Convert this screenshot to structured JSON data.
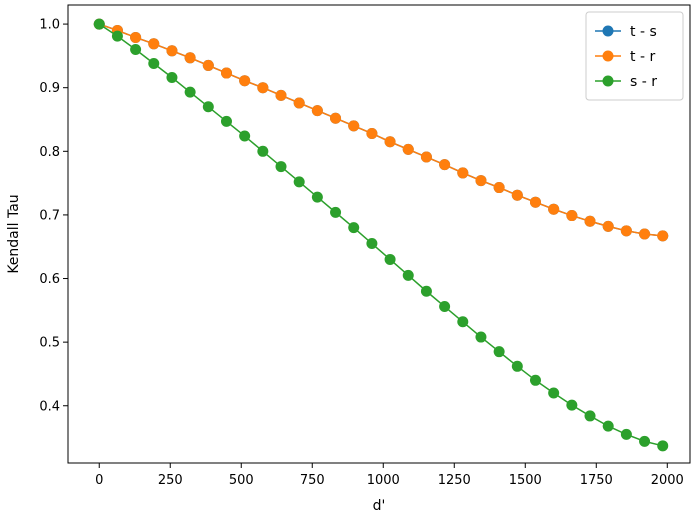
{
  "chart_data": {
    "type": "line",
    "title": "",
    "xlabel": "d'",
    "ylabel": "Kendall Tau",
    "xlim": [
      -110,
      2080
    ],
    "ylim": [
      0.31,
      1.03
    ],
    "xticks": [
      0,
      250,
      500,
      750,
      1000,
      1250,
      1500,
      1750,
      2000
    ],
    "yticks": [
      0.4,
      0.5,
      0.6,
      0.7,
      0.8,
      0.9,
      1.0
    ],
    "xtick_labels": [
      "0",
      "250",
      "500",
      "750",
      "1000",
      "1250",
      "1500",
      "1750",
      "2000"
    ],
    "ytick_labels": [
      "0.4",
      "0.5",
      "0.6",
      "0.7",
      "0.8",
      "0.9",
      "1.0"
    ],
    "grid": false,
    "legend_position": "top-right",
    "x": [
      0,
      64,
      128,
      192,
      256,
      320,
      384,
      448,
      512,
      576,
      640,
      704,
      768,
      832,
      896,
      960,
      1024,
      1088,
      1152,
      1216,
      1280,
      1344,
      1408,
      1472,
      1536,
      1600,
      1664,
      1728,
      1792,
      1856,
      1920,
      1984
    ],
    "series": [
      {
        "name": "t - s",
        "color": "#1f77b4",
        "values": [
          1.0,
          0.99,
          0.979,
          0.969,
          0.958,
          0.947,
          0.935,
          0.923,
          0.911,
          0.9,
          0.888,
          0.876,
          0.864,
          0.852,
          0.84,
          0.828,
          0.815,
          0.803,
          0.791,
          0.779,
          0.766,
          0.754,
          0.743,
          0.731,
          0.72,
          0.709,
          0.699,
          0.69,
          0.682,
          0.675,
          0.67,
          0.667
        ]
      },
      {
        "name": "t - r",
        "color": "#ff7f0e",
        "values": [
          1.0,
          0.99,
          0.979,
          0.969,
          0.958,
          0.947,
          0.935,
          0.923,
          0.911,
          0.9,
          0.888,
          0.876,
          0.864,
          0.852,
          0.84,
          0.828,
          0.815,
          0.803,
          0.791,
          0.779,
          0.766,
          0.754,
          0.743,
          0.731,
          0.72,
          0.709,
          0.699,
          0.69,
          0.682,
          0.675,
          0.67,
          0.667
        ]
      },
      {
        "name": "s - r",
        "color": "#2ca02c",
        "values": [
          1.0,
          0.981,
          0.96,
          0.938,
          0.916,
          0.893,
          0.87,
          0.847,
          0.824,
          0.8,
          0.776,
          0.752,
          0.728,
          0.704,
          0.68,
          0.655,
          0.63,
          0.605,
          0.58,
          0.556,
          0.532,
          0.508,
          0.485,
          0.462,
          0.44,
          0.42,
          0.401,
          0.384,
          0.368,
          0.355,
          0.344,
          0.337
        ]
      }
    ]
  }
}
